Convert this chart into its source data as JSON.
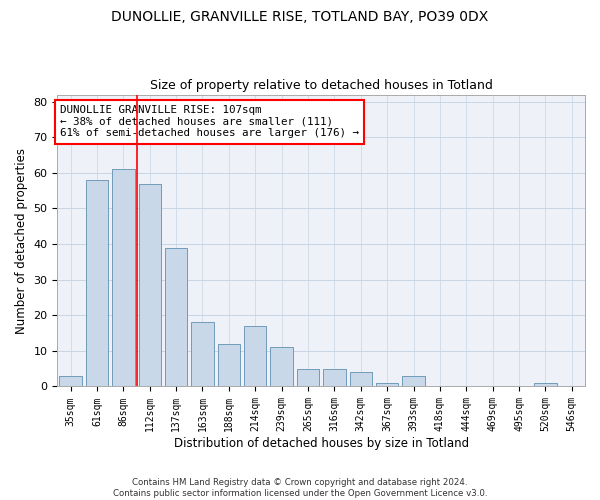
{
  "title": "DUNOLLIE, GRANVILLE RISE, TOTLAND BAY, PO39 0DX",
  "subtitle": "Size of property relative to detached houses in Totland",
  "xlabel": "Distribution of detached houses by size in Totland",
  "ylabel": "Number of detached properties",
  "categories": [
    "35sqm",
    "61sqm",
    "86sqm",
    "112sqm",
    "137sqm",
    "163sqm",
    "188sqm",
    "214sqm",
    "239sqm",
    "265sqm",
    "316sqm",
    "342sqm",
    "367sqm",
    "393sqm",
    "418sqm",
    "444sqm",
    "469sqm",
    "495sqm",
    "520sqm",
    "546sqm"
  ],
  "values": [
    3,
    58,
    61,
    57,
    39,
    18,
    12,
    17,
    11,
    5,
    5,
    4,
    1,
    3,
    0,
    0,
    0,
    0,
    1,
    0
  ],
  "bar_color": "#c8d8e8",
  "bar_edge_color": "#6090b0",
  "grid_color": "#c8d4e4",
  "bg_color": "#eef2f8",
  "annotation_text": "DUNOLLIE GRANVILLE RISE: 107sqm\n← 38% of detached houses are smaller (111)\n61% of semi-detached houses are larger (176) →",
  "footer": "Contains HM Land Registry data © Crown copyright and database right 2024.\nContains public sector information licensed under the Open Government Licence v3.0.",
  "ylim": [
    0,
    82
  ],
  "red_line_index": 2.5
}
